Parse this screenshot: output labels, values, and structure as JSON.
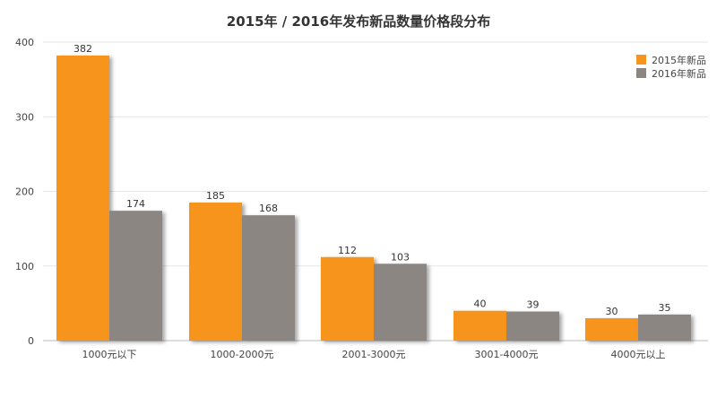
{
  "chart_data": {
    "type": "bar",
    "title": "2015年 / 2016年发布新品数量价格段分布",
    "categories": [
      "1000元以下",
      "1000-2000元",
      "2001-3000元",
      "3001-4000元",
      "4000元以上"
    ],
    "series": [
      {
        "name": "2015年新品",
        "values": [
          382,
          185,
          112,
          40,
          30
        ],
        "color": "#F7941D"
      },
      {
        "name": "2016年新品",
        "values": [
          174,
          168,
          103,
          39,
          35
        ],
        "color": "#8B8682"
      }
    ],
    "yticks": [
      0,
      100,
      200,
      300,
      400
    ],
    "ylim": [
      0,
      400
    ],
    "grid": true,
    "legend_position": "top-right",
    "xlabel": "",
    "ylabel": ""
  }
}
